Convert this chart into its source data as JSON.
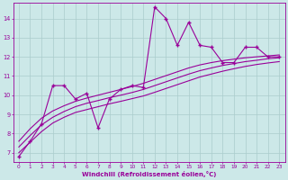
{
  "xlabel": "Windchill (Refroidissement éolien,°C)",
  "bg_color": "#cce8e8",
  "line_color": "#990099",
  "grid_color": "#aacccc",
  "xlim": [
    -0.5,
    23.5
  ],
  "ylim": [
    6.5,
    14.8
  ],
  "yticks": [
    7,
    8,
    9,
    10,
    11,
    12,
    13,
    14
  ],
  "xticks": [
    0,
    1,
    2,
    3,
    4,
    5,
    6,
    7,
    8,
    9,
    10,
    11,
    12,
    13,
    14,
    15,
    16,
    17,
    18,
    19,
    20,
    21,
    22,
    23
  ],
  "jagged_x": [
    0,
    1,
    2,
    3,
    4,
    5,
    6,
    7,
    8,
    9,
    10,
    11,
    12,
    13,
    14,
    15,
    16,
    17,
    18,
    19,
    20,
    21,
    22,
    23
  ],
  "jagged_y": [
    6.8,
    7.6,
    8.5,
    10.5,
    10.5,
    9.8,
    10.1,
    8.3,
    9.8,
    10.3,
    10.5,
    10.4,
    14.6,
    14.0,
    12.6,
    13.8,
    12.6,
    12.5,
    11.7,
    11.7,
    12.5,
    12.5,
    12.0,
    12.0
  ],
  "smooth1_x": [
    0,
    1,
    2,
    3,
    4,
    5,
    6,
    7,
    8,
    9,
    10,
    11,
    12,
    13,
    14,
    15,
    16,
    17,
    18,
    19,
    20,
    21,
    22,
    23
  ],
  "smooth1_y": [
    7.0,
    7.55,
    8.1,
    8.55,
    8.85,
    9.1,
    9.25,
    9.4,
    9.55,
    9.68,
    9.82,
    9.96,
    10.15,
    10.35,
    10.55,
    10.75,
    10.95,
    11.1,
    11.25,
    11.38,
    11.5,
    11.6,
    11.68,
    11.75
  ],
  "smooth2_x": [
    0,
    1,
    2,
    3,
    4,
    5,
    6,
    7,
    8,
    9,
    10,
    11,
    12,
    13,
    14,
    15,
    16,
    17,
    18,
    19,
    20,
    21,
    22,
    23
  ],
  "smooth2_y": [
    7.3,
    7.9,
    8.45,
    8.85,
    9.15,
    9.4,
    9.58,
    9.72,
    9.87,
    10.0,
    10.14,
    10.3,
    10.5,
    10.7,
    10.9,
    11.1,
    11.28,
    11.42,
    11.55,
    11.65,
    11.75,
    11.82,
    11.9,
    11.95
  ],
  "smooth3_x": [
    0,
    1,
    2,
    3,
    4,
    5,
    6,
    7,
    8,
    9,
    10,
    11,
    12,
    13,
    14,
    15,
    16,
    17,
    18,
    19,
    20,
    21,
    22,
    23
  ],
  "smooth3_y": [
    7.6,
    8.25,
    8.8,
    9.18,
    9.45,
    9.68,
    9.85,
    10.0,
    10.15,
    10.3,
    10.45,
    10.62,
    10.82,
    11.02,
    11.22,
    11.42,
    11.58,
    11.7,
    11.8,
    11.88,
    11.95,
    12.0,
    12.05,
    12.1
  ],
  "marker": "+",
  "markersize": 3,
  "linewidth": 0.8
}
